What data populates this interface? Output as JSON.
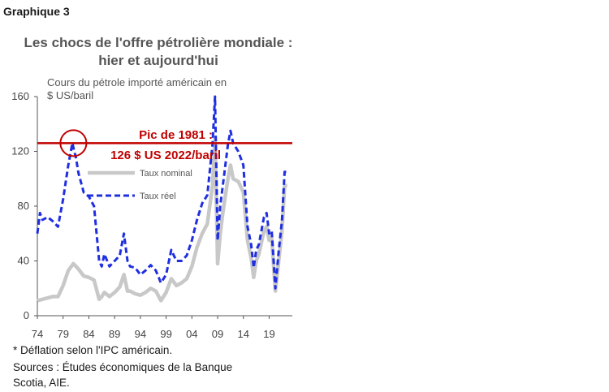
{
  "graph_label": "Graphique 3",
  "chart_data": {
    "type": "line",
    "title": "Les chocs de l'offre pétrolière mondiale : hier et aujourd'hui",
    "title_lines": [
      "Les chocs de l'offre pétrolière mondiale :",
      "hier et aujourd'hui"
    ],
    "ylabel": "Cours du pétrole importé américain en $ US/baril",
    "ylabel_lines": [
      "Cours du pétrole importé américain en",
      "$ US/baril"
    ],
    "ylim": [
      0,
      160
    ],
    "yticks": [
      0,
      40,
      80,
      120,
      160
    ],
    "xlim": [
      1974,
      2023.5
    ],
    "xticks": [
      1974,
      1979,
      1984,
      1989,
      1994,
      1999,
      2004,
      2009,
      2014,
      2019
    ],
    "xtick_labels": [
      "74",
      "79",
      "84",
      "89",
      "94",
      "99",
      "04",
      "09",
      "14",
      "19"
    ],
    "grid": false,
    "legend_position": "center",
    "series": [
      {
        "name": "Taux nominal",
        "color": "#c8c8c8",
        "style": "solid",
        "points": [
          [
            1974,
            11
          ],
          [
            1975,
            12
          ],
          [
            1976,
            13
          ],
          [
            1977,
            14
          ],
          [
            1978,
            14
          ],
          [
            1979,
            22
          ],
          [
            1980,
            33
          ],
          [
            1981,
            38
          ],
          [
            1982,
            34
          ],
          [
            1983,
            29
          ],
          [
            1984,
            28
          ],
          [
            1985,
            26
          ],
          [
            1986,
            12
          ],
          [
            1986.5,
            14
          ],
          [
            1987,
            17
          ],
          [
            1988,
            14
          ],
          [
            1989,
            17
          ],
          [
            1990,
            21
          ],
          [
            1990.8,
            30
          ],
          [
            1991.5,
            18
          ],
          [
            1992,
            18
          ],
          [
            1993,
            16
          ],
          [
            1994,
            15
          ],
          [
            1995,
            17
          ],
          [
            1996,
            20
          ],
          [
            1997,
            18
          ],
          [
            1998,
            11
          ],
          [
            1999,
            17
          ],
          [
            2000,
            27
          ],
          [
            2001,
            22
          ],
          [
            2002,
            24
          ],
          [
            2003,
            27
          ],
          [
            2004,
            36
          ],
          [
            2005,
            50
          ],
          [
            2006,
            60
          ],
          [
            2007,
            67
          ],
          [
            2008,
            95
          ],
          [
            2008.5,
            130
          ],
          [
            2009,
            38
          ],
          [
            2009.5,
            60
          ],
          [
            2010,
            75
          ],
          [
            2011,
            100
          ],
          [
            2011.5,
            110
          ],
          [
            2012,
            100
          ],
          [
            2013,
            98
          ],
          [
            2014,
            90
          ],
          [
            2014.8,
            55
          ],
          [
            2015.5,
            42
          ],
          [
            2016,
            28
          ],
          [
            2016.5,
            40
          ],
          [
            2017,
            45
          ],
          [
            2018,
            62
          ],
          [
            2018.5,
            65
          ],
          [
            2019,
            55
          ],
          [
            2019.5,
            57
          ],
          [
            2020.2,
            18
          ],
          [
            2020.8,
            38
          ],
          [
            2021.5,
            62
          ],
          [
            2022,
            95
          ],
          [
            2022.5,
            95
          ]
        ]
      },
      {
        "name": "Taux réel",
        "color": "#1f2fe0",
        "style": "dashed",
        "points": [
          [
            1974,
            60
          ],
          [
            1974.5,
            75
          ],
          [
            1975,
            70
          ],
          [
            1976,
            72
          ],
          [
            1977,
            69
          ],
          [
            1978,
            65
          ],
          [
            1979,
            85
          ],
          [
            1980,
            110
          ],
          [
            1980.8,
            126
          ],
          [
            1981.5,
            115
          ],
          [
            1982,
            104
          ],
          [
            1983,
            90
          ],
          [
            1984,
            87
          ],
          [
            1985,
            80
          ],
          [
            1986,
            40
          ],
          [
            1986.5,
            36
          ],
          [
            1987,
            45
          ],
          [
            1988,
            36
          ],
          [
            1989,
            40
          ],
          [
            1990,
            44
          ],
          [
            1990.8,
            60
          ],
          [
            1991.5,
            40
          ],
          [
            1992,
            36
          ],
          [
            1993,
            35
          ],
          [
            1994,
            30
          ],
          [
            1995,
            33
          ],
          [
            1996,
            37
          ],
          [
            1997,
            33
          ],
          [
            1998,
            24
          ],
          [
            1999,
            30
          ],
          [
            2000,
            48
          ],
          [
            2001,
            40
          ],
          [
            2002,
            40
          ],
          [
            2003,
            44
          ],
          [
            2004,
            55
          ],
          [
            2005,
            70
          ],
          [
            2006,
            82
          ],
          [
            2007,
            88
          ],
          [
            2008,
            125
          ],
          [
            2008.5,
            160
          ],
          [
            2009,
            55
          ],
          [
            2009.5,
            80
          ],
          [
            2010,
            95
          ],
          [
            2011,
            125
          ],
          [
            2011.5,
            135
          ],
          [
            2012,
            126
          ],
          [
            2013,
            120
          ],
          [
            2014,
            110
          ],
          [
            2014.8,
            65
          ],
          [
            2015.5,
            52
          ],
          [
            2016,
            35
          ],
          [
            2016.5,
            48
          ],
          [
            2017,
            52
          ],
          [
            2018,
            72
          ],
          [
            2018.5,
            75
          ],
          [
            2019,
            60
          ],
          [
            2019.5,
            62
          ],
          [
            2020.2,
            20
          ],
          [
            2020.8,
            45
          ],
          [
            2021.5,
            70
          ],
          [
            2022,
            105
          ],
          [
            2022.5,
            105
          ]
        ]
      }
    ],
    "reference_line": {
      "value": 126,
      "color": "#c00000"
    },
    "annotations": [
      "Pic de 1981 :",
      "126 $ US 2022/baril"
    ],
    "highlight": {
      "x": 1981,
      "y": 126,
      "color": "#c00000"
    }
  },
  "notes": {
    "deflation": "* Déflation selon l'IPC américain.",
    "sources_line1": "Sources : Études économiques de la Banque",
    "sources_line2": "Scotia, AIE."
  }
}
